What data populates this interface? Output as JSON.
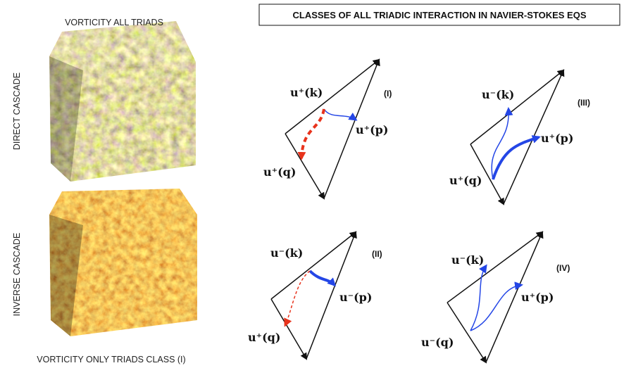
{
  "left_panel": {
    "top_title": "VORTICITY  ALL  TRIADS",
    "direct_label": "DIRECT CASCADE",
    "inverse_label": "INVERSE CASCADE",
    "bottom_title": "VORTICITY ONLY TRIADS CLASS (I)"
  },
  "header": {
    "title": "CLASSES OF ALL TRIADIC INTERACTION IN NAVIER-STOKES EQS"
  },
  "triads": [
    {
      "class": "(I)",
      "k": "u⁺(k)",
      "p": "u⁺(p)",
      "q": "u⁺(q)"
    },
    {
      "class": "(III)",
      "k": "u⁻(k)",
      "p": "u⁺(p)",
      "q": "u⁺(q)"
    },
    {
      "class": "(II)",
      "k": "u⁻(k)",
      "p": "u⁻(p)",
      "q": "u⁺(q)"
    },
    {
      "class": "(IV)",
      "k": "u⁻(k)",
      "p": "u⁺(p)",
      "q": "u⁻(q)"
    }
  ]
}
